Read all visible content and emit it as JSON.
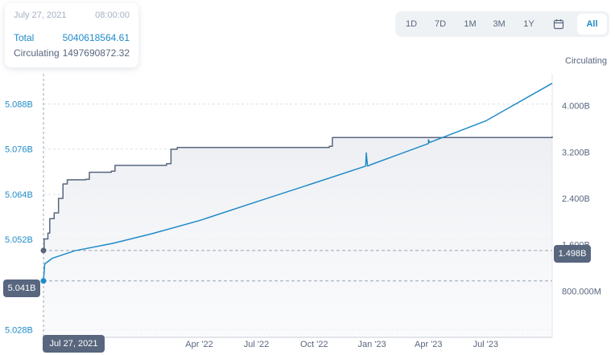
{
  "tooltip": {
    "date": "July 27, 2021",
    "time": "08:00:00",
    "total_label": "Total",
    "total_value": "5040618564.61",
    "circulating_label": "Circulating",
    "circulating_value": "1497690872.32"
  },
  "range_buttons": [
    "1D",
    "7D",
    "1M",
    "3M",
    "1Y",
    "All"
  ],
  "range_active": "All",
  "icons": {
    "calendar": "calendar-icon"
  },
  "colors": {
    "total": "#1f8bc9",
    "circulating": "#58667e",
    "badge": "#58667e",
    "grid": "#c7ccd6"
  },
  "badges": {
    "left": "5.041B",
    "right": "1.498B",
    "bottom": "Jul 27, 2021"
  },
  "chart_data": {
    "type": "line",
    "x_ticks": [
      "Apr '22",
      "Jul '22",
      "Oct '22",
      "Jan '23",
      "Apr '23",
      "Jul '23"
    ],
    "x_range": [
      "2021-07-27",
      "2023-10-15"
    ],
    "left_axis": {
      "ticks": [
        "5.088B",
        "5.076B",
        "5.064B",
        "5.052B",
        "5.028B"
      ],
      "tick_values": [
        5.088,
        5.076,
        5.064,
        5.052,
        5.028
      ],
      "range": [
        5.026,
        5.096
      ]
    },
    "right_axis": {
      "title": "Circulating",
      "ticks": [
        "4.000B",
        "3.200B",
        "2.400B",
        "1.600B",
        "800.000M"
      ],
      "tick_values": [
        4.0,
        3.2,
        2.4,
        1.6,
        0.8
      ],
      "range": [
        0.0,
        4.55
      ]
    },
    "grid": "horizontal dashed",
    "series": [
      {
        "key": "total",
        "axis": "left",
        "points": [
          [
            "2021-07-27",
            5.041
          ],
          [
            "2021-07-29",
            5.0455
          ],
          [
            "2021-08-10",
            5.047
          ],
          [
            "2021-09-15",
            5.049
          ],
          [
            "2021-11-15",
            5.051
          ],
          [
            "2022-01-15",
            5.0535
          ],
          [
            "2022-04-01",
            5.057
          ],
          [
            "2022-07-01",
            5.062
          ],
          [
            "2022-10-01",
            5.067
          ],
          [
            "2022-12-22",
            5.0715
          ],
          [
            "2022-12-23",
            5.075
          ],
          [
            "2022-12-25",
            5.0715
          ],
          [
            "2023-01-01",
            5.072
          ],
          [
            "2023-04-01",
            5.0775
          ],
          [
            "2023-04-01",
            5.0785
          ],
          [
            "2023-04-03",
            5.0778
          ],
          [
            "2023-07-01",
            5.0835
          ],
          [
            "2023-10-15",
            5.0935
          ]
        ]
      },
      {
        "key": "circulating",
        "axis": "right",
        "points": [
          [
            "2021-07-27",
            1.5
          ],
          [
            "2021-07-28",
            1.7
          ],
          [
            "2021-08-03",
            1.8
          ],
          [
            "2021-08-06",
            2.05
          ],
          [
            "2021-08-13",
            2.15
          ],
          [
            "2021-08-20",
            2.4
          ],
          [
            "2021-08-27",
            2.65
          ],
          [
            "2021-09-03",
            2.72
          ],
          [
            "2021-10-02",
            2.73
          ],
          [
            "2021-10-08",
            2.85
          ],
          [
            "2021-11-12",
            2.87
          ],
          [
            "2021-11-18",
            2.97
          ],
          [
            "2022-02-08",
            3.0
          ],
          [
            "2022-02-15",
            3.25
          ],
          [
            "2022-02-25",
            3.28
          ],
          [
            "2022-10-25",
            3.3
          ],
          [
            "2022-10-30",
            3.45
          ],
          [
            "2023-10-15",
            3.47
          ]
        ]
      }
    ]
  }
}
